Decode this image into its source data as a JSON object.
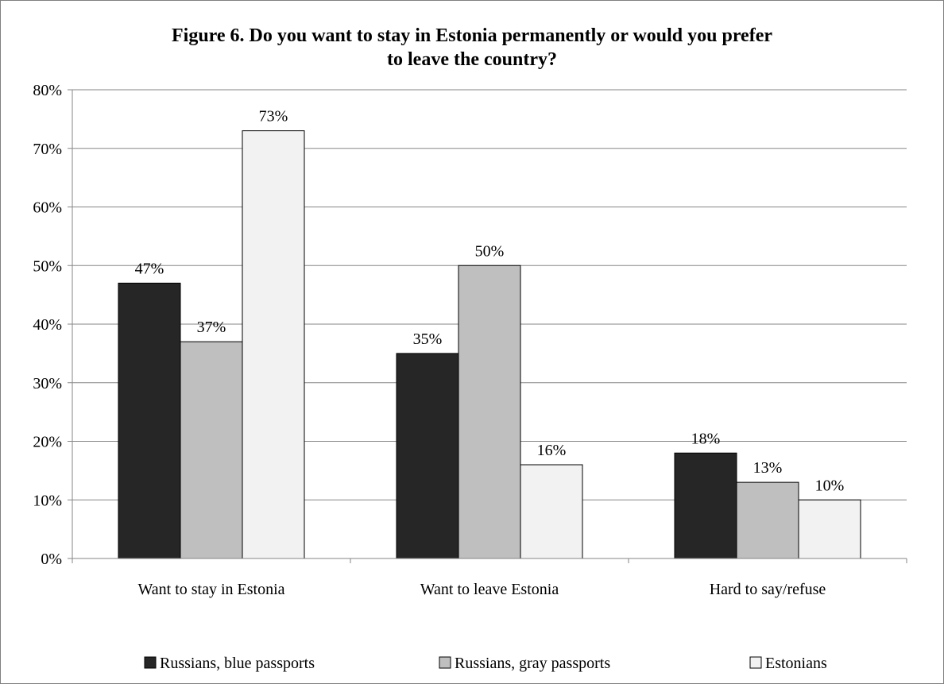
{
  "chart_data": {
    "type": "bar",
    "title_line1": "Figure 6. Do you want to stay in Estonia permanently or would you prefer",
    "title_line2": "to leave the country?",
    "categories": [
      "Want to stay in Estonia",
      "Want to leave Estonia",
      "Hard to say/refuse"
    ],
    "series": [
      {
        "name": "Russians, blue passports",
        "values": [
          47,
          35,
          18
        ],
        "labels": [
          "47%",
          "35%",
          "18%"
        ],
        "color": "#262626"
      },
      {
        "name": "Russians, gray passports",
        "values": [
          37,
          50,
          13
        ],
        "labels": [
          "37%",
          "50%",
          "13%"
        ],
        "color": "#bfbfbf"
      },
      {
        "name": "Estonians",
        "values": [
          73,
          16,
          10
        ],
        "labels": [
          "73%",
          "16%",
          "10%"
        ],
        "color": "#f2f2f2"
      }
    ],
    "y_ticks": [
      "0%",
      "10%",
      "20%",
      "30%",
      "40%",
      "50%",
      "60%",
      "70%",
      "80%"
    ],
    "ylim": [
      0,
      80
    ],
    "grid": true,
    "legend_position": "bottom"
  }
}
